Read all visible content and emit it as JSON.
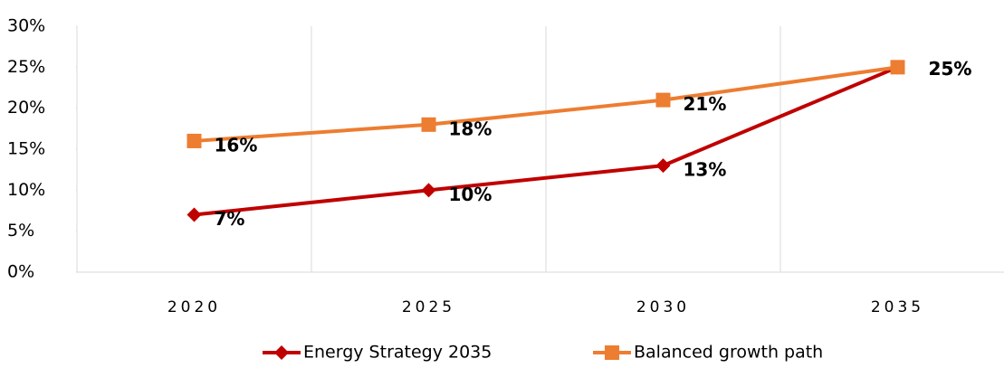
{
  "chart_data": {
    "type": "line",
    "categories": [
      "2020",
      "2025",
      "2030",
      "2035"
    ],
    "series": [
      {
        "name": "Energy Strategy 2035",
        "color": "#c00000",
        "marker": "diamond",
        "values": [
          7,
          10,
          13,
          25
        ],
        "value_labels": [
          "7%",
          "10%",
          "13%",
          "25%"
        ]
      },
      {
        "name": "Balanced growth path",
        "color": "#ed7d31",
        "marker": "square",
        "values": [
          16,
          18,
          21,
          25
        ],
        "value_labels": [
          "16%",
          "18%",
          "21%",
          "25%"
        ]
      }
    ],
    "ylim": [
      0,
      30
    ],
    "yticks": [
      {
        "value": 0,
        "label": "0%"
      },
      {
        "value": 5,
        "label": "5%"
      },
      {
        "value": 10,
        "label": "10%"
      },
      {
        "value": 15,
        "label": "15%"
      },
      {
        "value": 20,
        "label": "20%"
      },
      {
        "value": 25,
        "label": "25%"
      },
      {
        "value": 30,
        "label": "30%"
      }
    ],
    "legend": "bottom"
  }
}
